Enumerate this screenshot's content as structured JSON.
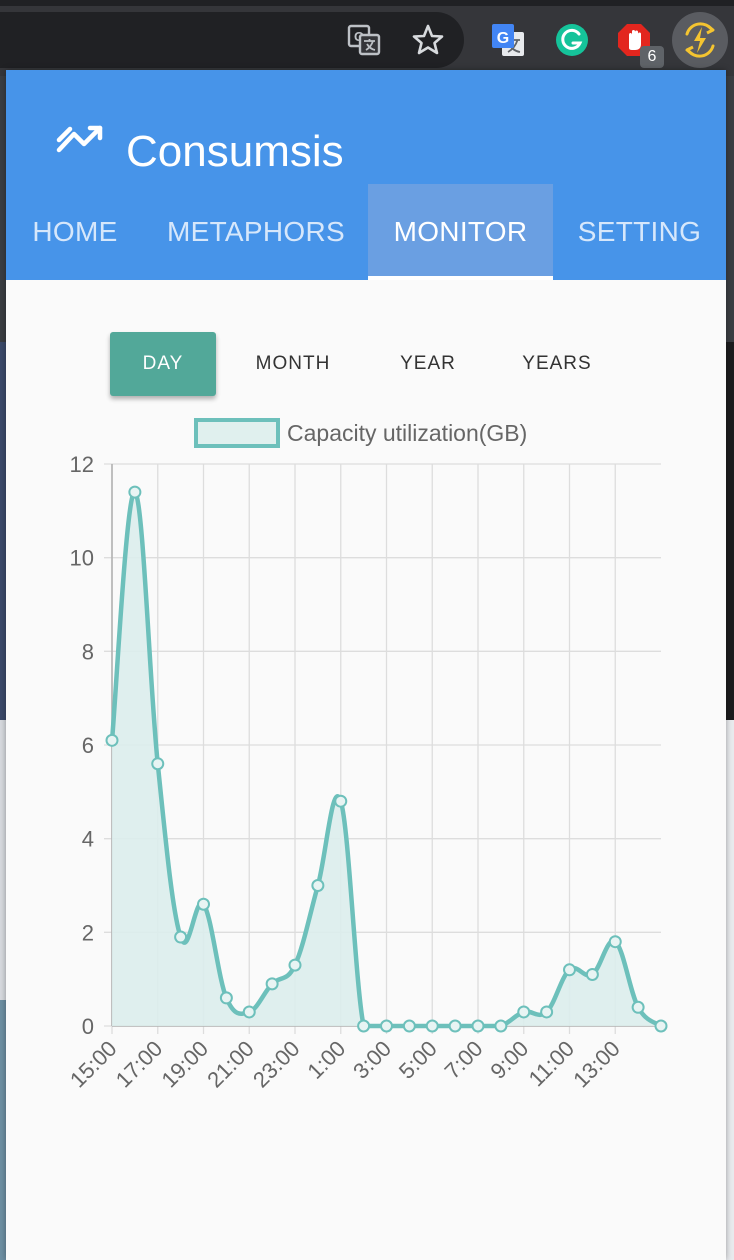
{
  "browser": {
    "extensions": [
      {
        "name": "translate-icon"
      },
      {
        "name": "bookmark-star-icon"
      },
      {
        "name": "google-translate-icon"
      },
      {
        "name": "grammarly-icon"
      },
      {
        "name": "adblock-icon",
        "badge": "6"
      },
      {
        "name": "consumsis-extension-icon"
      }
    ],
    "colors": {
      "toolbar": "#35363a",
      "omnibox": "#202124"
    }
  },
  "app": {
    "title": "Consumsis",
    "colors": {
      "header": "#4794e9",
      "active_tab": "#6a9fe2",
      "accent": "#52a899",
      "series": "#6dc0bb"
    }
  },
  "nav": {
    "tabs": [
      {
        "label": "HOME"
      },
      {
        "label": "METAPHORS"
      },
      {
        "label": "MONITOR",
        "active": true
      },
      {
        "label": "SETTING"
      }
    ]
  },
  "range": {
    "options": [
      {
        "label": "DAY",
        "active": true
      },
      {
        "label": "MONTH"
      },
      {
        "label": "YEAR"
      },
      {
        "label": "YEARS"
      }
    ]
  },
  "chart_data": {
    "type": "area",
    "series": [
      {
        "name": "Capacity utilization(GB)",
        "values": [
          6.1,
          11.4,
          5.6,
          1.9,
          2.6,
          0.6,
          0.3,
          0.9,
          1.3,
          3.0,
          4.8,
          0,
          0,
          0,
          0,
          0,
          0,
          0,
          0.3,
          0.3,
          1.2,
          1.1,
          1.8,
          0.4,
          0
        ]
      }
    ],
    "x": [
      "15:00",
      "16:00",
      "17:00",
      "18:00",
      "19:00",
      "20:00",
      "21:00",
      "22:00",
      "23:00",
      "0:00",
      "1:00",
      "2:00",
      "3:00",
      "4:00",
      "5:00",
      "6:00",
      "7:00",
      "8:00",
      "9:00",
      "10:00",
      "11:00",
      "12:00",
      "13:00",
      "14:00",
      "15:00"
    ],
    "x_tick_labels": [
      "15:00",
      "17:00",
      "19:00",
      "21:00",
      "23:00",
      "1:00",
      "3:00",
      "5:00",
      "7:00",
      "9:00",
      "11:00",
      "13:00"
    ],
    "y_ticks": [
      "0",
      "2",
      "4",
      "6",
      "8",
      "10",
      "12"
    ],
    "ylim": [
      0,
      12
    ],
    "grid": true,
    "legend": "top"
  }
}
